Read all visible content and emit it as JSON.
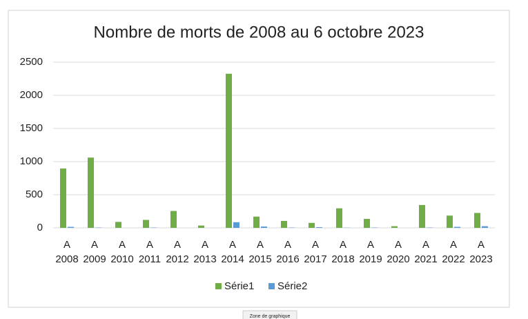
{
  "chart_data": {
    "type": "bar",
    "title": "Nombre de morts de 2008 au 6 octobre 2023",
    "categories": [
      [
        "A",
        "2008"
      ],
      [
        "A",
        "2009"
      ],
      [
        "A",
        "2010"
      ],
      [
        "A",
        "2011"
      ],
      [
        "A",
        "2012"
      ],
      [
        "A",
        "2013"
      ],
      [
        "A",
        "2014"
      ],
      [
        "A",
        "2015"
      ],
      [
        "A",
        "2016"
      ],
      [
        "A",
        "2017"
      ],
      [
        "A",
        "2018"
      ],
      [
        "A",
        "2019"
      ],
      [
        "A",
        "2020"
      ],
      [
        "A",
        "2021"
      ],
      [
        "A",
        "2022"
      ],
      [
        "A",
        "2023"
      ]
    ],
    "series": [
      {
        "name": "Série1",
        "color": "#70ad47",
        "values": [
          895,
          1060,
          90,
          120,
          255,
          35,
          2325,
          170,
          105,
          75,
          295,
          135,
          25,
          345,
          185,
          225
        ]
      },
      {
        "name": "Série2",
        "color": "#5b9bd5",
        "values": [
          15,
          5,
          0,
          5,
          0,
          0,
          85,
          20,
          5,
          10,
          3,
          5,
          0,
          5,
          15,
          25
        ]
      }
    ],
    "ylim": [
      0,
      2500
    ],
    "yticks": [
      0,
      500,
      1000,
      1500,
      2000,
      2500
    ],
    "grid": true,
    "legend": "bottom",
    "tooltip": "Zone de graphique"
  }
}
